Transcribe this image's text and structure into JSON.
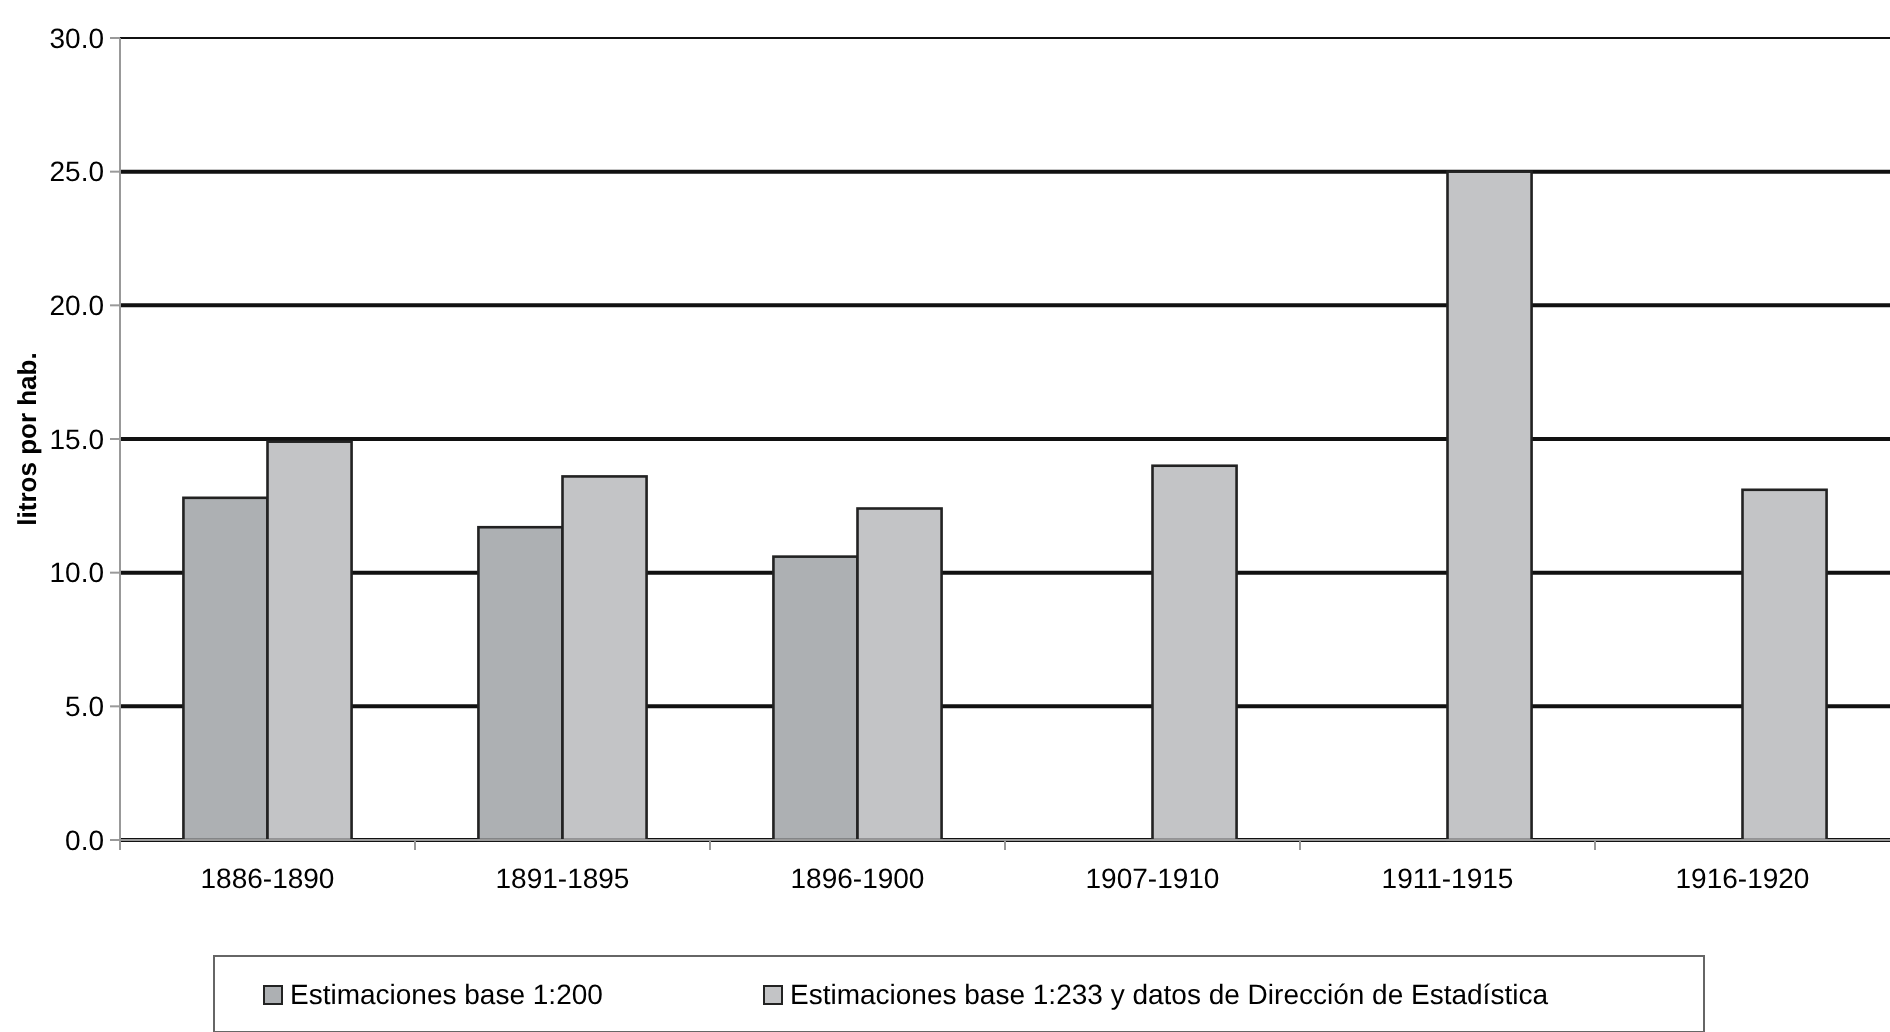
{
  "chart_data": {
    "type": "bar",
    "ylabel": "litros por hab.",
    "categories": [
      "1886-1890",
      "1891-1895",
      "1896-1900",
      "1907-1910",
      "1911-1915",
      "1916-1920"
    ],
    "series": [
      {
        "name": "Estimaciones base 1:200",
        "color": "#adb0b3",
        "values": [
          12.8,
          11.7,
          10.6,
          null,
          null,
          null
        ]
      },
      {
        "name": "Estimaciones base 1:233 y datos de Dirección de Estadística",
        "color": "#c3c4c6",
        "values": [
          14.9,
          13.6,
          12.4,
          14.0,
          25.0,
          13.1
        ]
      }
    ],
    "ylim": [
      0,
      30
    ],
    "yticks": [
      {
        "value": 0,
        "label": "0.0"
      },
      {
        "value": 5,
        "label": "5.0"
      },
      {
        "value": 10,
        "label": "10.0"
      },
      {
        "value": 15,
        "label": "15.0"
      },
      {
        "value": 20,
        "label": "20.0"
      },
      {
        "value": 25,
        "label": "25.0"
      },
      {
        "value": 30,
        "label": "30.0"
      }
    ],
    "grid": "y",
    "legend": "bottom"
  }
}
